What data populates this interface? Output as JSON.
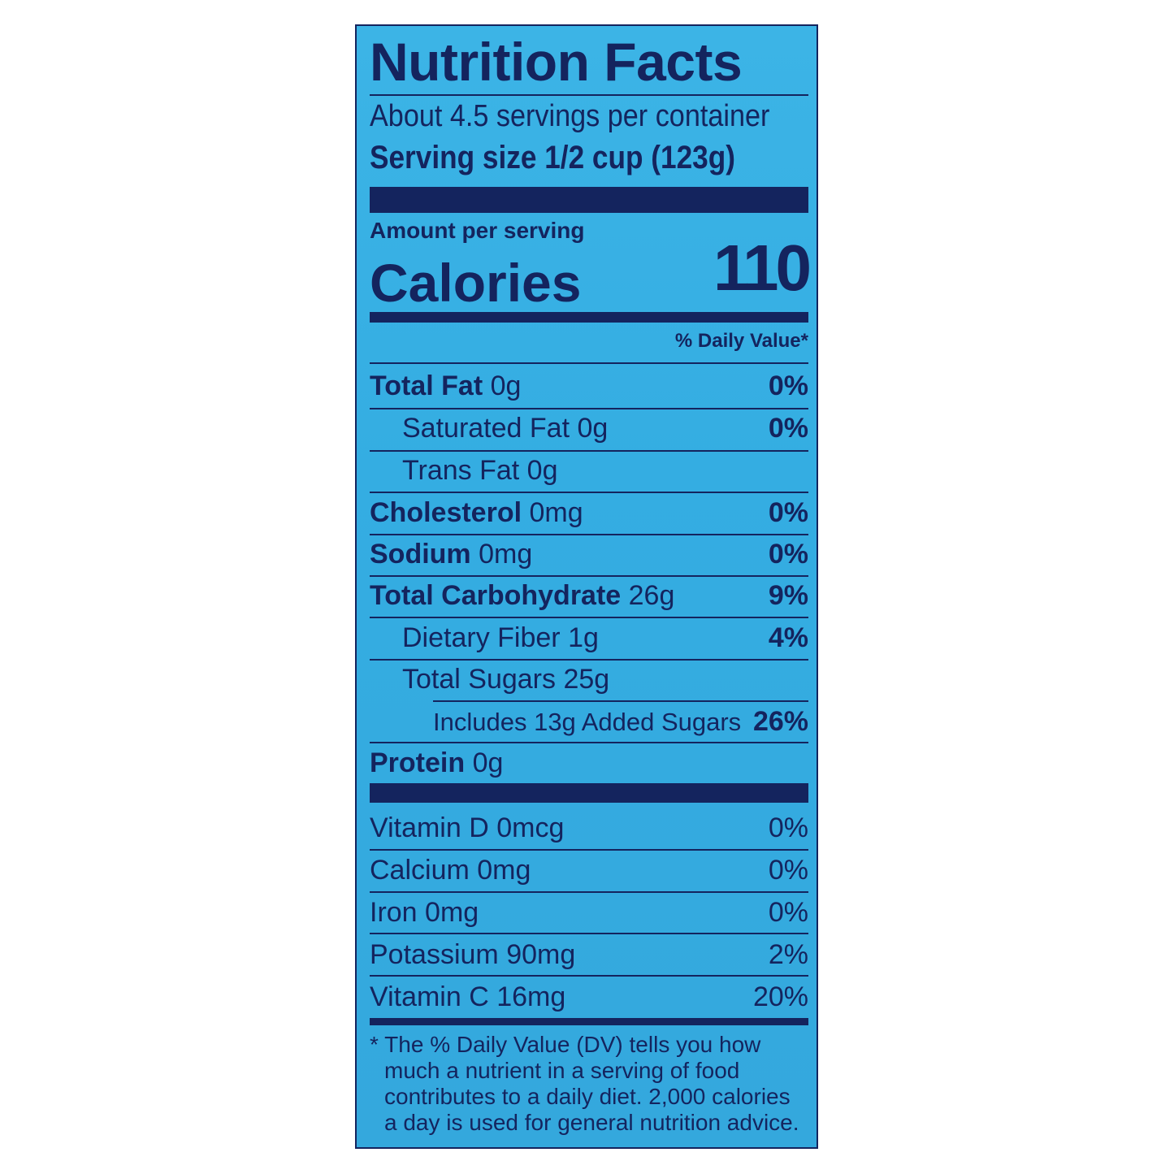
{
  "title": "Nutrition Facts",
  "servings_per_container": "About 4.5 servings per container",
  "serving_size_label": "Serving size",
  "serving_size_value": "1/2 cup (123g)",
  "amount_per_serving": "Amount per serving",
  "calories_label": "Calories",
  "calories_value": "110",
  "daily_value_header": "% Daily Value*",
  "nutrients": [
    {
      "name": "Total Fat",
      "amount": "0g",
      "dv": "0%"
    },
    {
      "name": "Saturated Fat",
      "amount": "0g",
      "dv": "0%"
    },
    {
      "name": "Trans Fat",
      "amount": "0g",
      "dv": ""
    },
    {
      "name": "Cholesterol",
      "amount": "0mg",
      "dv": "0%"
    },
    {
      "name": "Sodium",
      "amount": "0mg",
      "dv": "0%"
    },
    {
      "name": "Total Carbohydrate",
      "amount": "26g",
      "dv": "9%"
    },
    {
      "name": "Dietary Fiber",
      "amount": "1g",
      "dv": "4%"
    },
    {
      "name": "Total Sugars",
      "amount": "25g",
      "dv": ""
    },
    {
      "name": "Includes 13g Added Sugars",
      "amount": "",
      "dv": "26%"
    },
    {
      "name": "Protein",
      "amount": "0g",
      "dv": ""
    }
  ],
  "vitamins": [
    {
      "name": "Vitamin D",
      "amount": "0mcg",
      "dv": "0%"
    },
    {
      "name": "Calcium",
      "amount": "0mg",
      "dv": "0%"
    },
    {
      "name": "Iron",
      "amount": "0mg",
      "dv": "0%"
    },
    {
      "name": "Potassium",
      "amount": "90mg",
      "dv": "2%"
    },
    {
      "name": "Vitamin C",
      "amount": "16mg",
      "dv": "20%"
    }
  ],
  "footnote": [
    "* The % Daily Value (DV) tells you how",
    "much a nutrient in a serving of food",
    "contributes to a daily diet. 2,000  calories",
    "a day is used for general nutrition advice."
  ],
  "colors": {
    "background": "#38aee0",
    "text": "#14245e"
  }
}
